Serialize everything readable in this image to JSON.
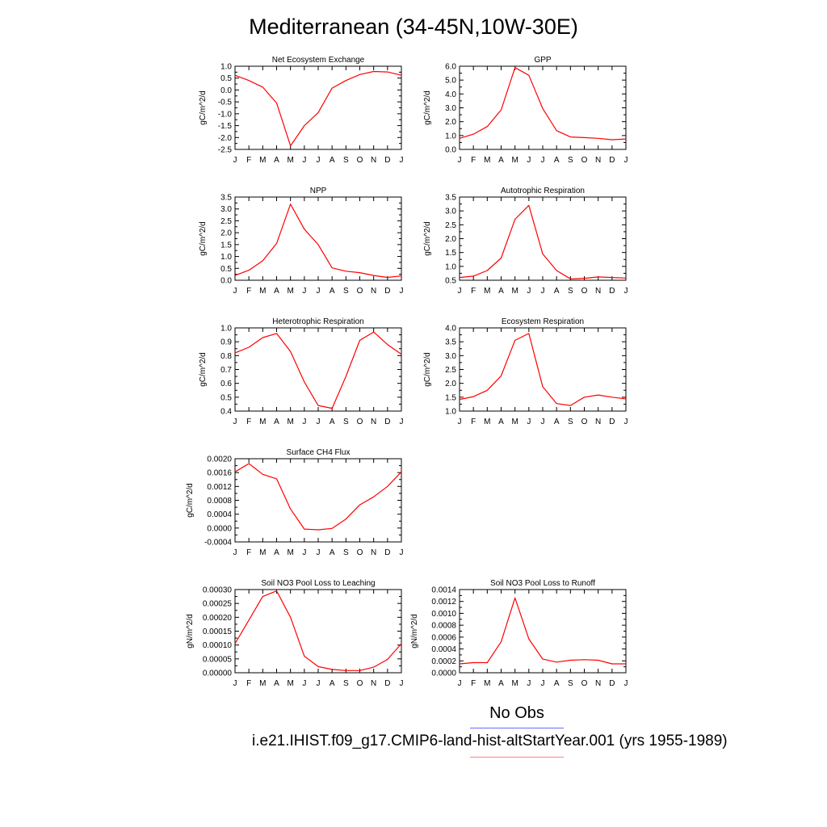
{
  "title": "Mediterranean (34-45N,10W-30E)",
  "colors": {
    "series": "#ff0000",
    "obs_line": "#6a6aff",
    "model_line": "#ff8080",
    "axis": "#000000"
  },
  "legend": {
    "obs_label": "No Obs",
    "model_label": "i.e21.IHIST.f09_g17.CMIP6-land-hist-altStartYear.001 (yrs 1955-1989)"
  },
  "chart_data": [
    {
      "type": "line",
      "title": "Net Ecosystem Exchange",
      "ylabel": "gC/m^2/d",
      "xlabel": "",
      "categories": [
        "J",
        "F",
        "M",
        "A",
        "M",
        "J",
        "J",
        "A",
        "S",
        "O",
        "N",
        "D",
        "J"
      ],
      "ylim": [
        -2.5,
        1.0
      ],
      "yticks": [
        1.0,
        0.5,
        0.0,
        -0.5,
        -1.0,
        -1.5,
        -2.0,
        -2.5
      ],
      "ytick_labels": [
        "1.0",
        "0.5",
        "0.0",
        "-0.5",
        "-1.0",
        "-1.5",
        "-2.0",
        "-2.5"
      ],
      "series": [
        {
          "values": [
            0.62,
            0.4,
            0.12,
            -0.55,
            -2.35,
            -1.5,
            -0.95,
            0.08,
            0.4,
            0.65,
            0.78,
            0.76,
            0.62
          ]
        }
      ]
    },
    {
      "type": "line",
      "title": "GPP",
      "ylabel": "gC/m^2/d",
      "xlabel": "",
      "categories": [
        "J",
        "F",
        "M",
        "A",
        "M",
        "J",
        "J",
        "A",
        "S",
        "O",
        "N",
        "D",
        "J"
      ],
      "ylim": [
        0.0,
        6.0
      ],
      "yticks": [
        6.0,
        5.0,
        4.0,
        3.0,
        2.0,
        1.0,
        0.0
      ],
      "ytick_labels": [
        "6.0",
        "5.0",
        "4.0",
        "3.0",
        "2.0",
        "1.0",
        "0.0"
      ],
      "series": [
        {
          "values": [
            0.8,
            1.1,
            1.65,
            2.85,
            5.9,
            5.35,
            2.95,
            1.35,
            0.9,
            0.85,
            0.8,
            0.7,
            0.75
          ]
        }
      ]
    },
    {
      "type": "line",
      "title": "NPP",
      "ylabel": "gC/m^2/d",
      "xlabel": "",
      "categories": [
        "J",
        "F",
        "M",
        "A",
        "M",
        "J",
        "J",
        "A",
        "S",
        "O",
        "N",
        "D",
        "J"
      ],
      "ylim": [
        0.0,
        3.5
      ],
      "yticks": [
        3.5,
        3.0,
        2.5,
        2.0,
        1.5,
        1.0,
        0.5,
        0.0
      ],
      "ytick_labels": [
        "3.5",
        "3.0",
        "2.5",
        "2.0",
        "1.5",
        "1.0",
        "0.5",
        "0.0"
      ],
      "series": [
        {
          "values": [
            0.2,
            0.42,
            0.82,
            1.55,
            3.2,
            2.15,
            1.5,
            0.52,
            0.38,
            0.32,
            0.2,
            0.12,
            0.18
          ]
        }
      ]
    },
    {
      "type": "line",
      "title": "Autotrophic Respiration",
      "ylabel": "gC/m^2/d",
      "xlabel": "",
      "categories": [
        "J",
        "F",
        "M",
        "A",
        "M",
        "J",
        "J",
        "A",
        "S",
        "O",
        "N",
        "D",
        "J"
      ],
      "ylim": [
        0.5,
        3.5
      ],
      "yticks": [
        3.5,
        3.0,
        2.5,
        2.0,
        1.5,
        1.0,
        0.5
      ],
      "ytick_labels": [
        "3.5",
        "3.0",
        "2.5",
        "2.0",
        "1.5",
        "1.0",
        "0.5"
      ],
      "series": [
        {
          "values": [
            0.6,
            0.65,
            0.85,
            1.3,
            2.7,
            3.2,
            1.45,
            0.85,
            0.55,
            0.57,
            0.62,
            0.6,
            0.58
          ]
        }
      ]
    },
    {
      "type": "line",
      "title": "Heterotrophic Respiration",
      "ylabel": "gC/m^2/d",
      "xlabel": "",
      "categories": [
        "J",
        "F",
        "M",
        "A",
        "M",
        "J",
        "J",
        "A",
        "S",
        "O",
        "N",
        "D",
        "J"
      ],
      "ylim": [
        0.4,
        1.0
      ],
      "yticks": [
        1.0,
        0.9,
        0.8,
        0.7,
        0.6,
        0.5,
        0.4
      ],
      "ytick_labels": [
        "1.0",
        "0.9",
        "0.8",
        "0.7",
        "0.6",
        "0.5",
        "0.4"
      ],
      "series": [
        {
          "values": [
            0.82,
            0.86,
            0.93,
            0.96,
            0.83,
            0.61,
            0.44,
            0.42,
            0.65,
            0.91,
            0.97,
            0.88,
            0.81
          ]
        }
      ]
    },
    {
      "type": "line",
      "title": "Ecosystem Respiration",
      "ylabel": "gC/m^2/d",
      "xlabel": "",
      "categories": [
        "J",
        "F",
        "M",
        "A",
        "M",
        "J",
        "J",
        "A",
        "S",
        "O",
        "N",
        "D",
        "J"
      ],
      "ylim": [
        1.0,
        4.0
      ],
      "yticks": [
        4.0,
        3.5,
        3.0,
        2.5,
        2.0,
        1.5,
        1.0
      ],
      "ytick_labels": [
        "4.0",
        "3.5",
        "3.0",
        "2.5",
        "2.0",
        "1.5",
        "1.0"
      ],
      "series": [
        {
          "values": [
            1.42,
            1.52,
            1.75,
            2.27,
            3.55,
            3.8,
            1.88,
            1.27,
            1.2,
            1.5,
            1.58,
            1.5,
            1.44
          ]
        }
      ]
    },
    {
      "type": "line",
      "title": "Surface CH4 Flux",
      "ylabel": "gC/m^2/d",
      "xlabel": "",
      "categories": [
        "J",
        "F",
        "M",
        "A",
        "M",
        "J",
        "J",
        "A",
        "S",
        "O",
        "N",
        "D",
        "J"
      ],
      "ylim": [
        -0.0004,
        0.002
      ],
      "yticks": [
        0.002,
        0.0016,
        0.0012,
        0.0008,
        0.0004,
        0.0,
        -0.0004
      ],
      "ytick_labels": [
        "0.0020",
        "0.0016",
        "0.0012",
        "0.0008",
        "0.0004",
        "0.0000",
        "-0.0004"
      ],
      "series": [
        {
          "values": [
            0.00162,
            0.00186,
            0.00155,
            0.00142,
            0.00055,
            -3e-05,
            -5e-05,
            -1e-05,
            0.00026,
            0.00067,
            0.0009,
            0.0012,
            0.00162
          ]
        }
      ]
    },
    {
      "type": "line",
      "title": "Soil NO3 Pool Loss to Leaching",
      "ylabel": "gN/m^2/d",
      "xlabel": "",
      "categories": [
        "J",
        "F",
        "M",
        "A",
        "M",
        "J",
        "J",
        "A",
        "S",
        "O",
        "N",
        "D",
        "J"
      ],
      "ylim": [
        0.0,
        0.0003
      ],
      "yticks": [
        0.0003,
        0.00025,
        0.0002,
        0.00015,
        0.0001,
        5e-05,
        0.0
      ],
      "ytick_labels": [
        "0.00030",
        "0.00025",
        "0.00020",
        "0.00015",
        "0.00010",
        "0.00005",
        "0.00000"
      ],
      "series": [
        {
          "values": [
            0.000105,
            0.00019,
            0.000275,
            0.000295,
            0.0002,
            6e-05,
            2.2e-05,
            1.2e-05,
            8e-06,
            8e-06,
            2e-05,
            4.8e-05,
            0.000105
          ]
        }
      ]
    },
    {
      "type": "line",
      "title": "Soil NO3 Pool Loss to Runoff",
      "ylabel": "gN/m^2/d",
      "xlabel": "",
      "categories": [
        "J",
        "F",
        "M",
        "A",
        "M",
        "J",
        "J",
        "A",
        "S",
        "O",
        "N",
        "D",
        "J"
      ],
      "ylim": [
        0.0,
        0.0014
      ],
      "yticks": [
        0.0014,
        0.0012,
        0.001,
        0.0008,
        0.0006,
        0.0004,
        0.0002,
        0.0
      ],
      "ytick_labels": [
        "0.0014",
        "0.0012",
        "0.0010",
        "0.0008",
        "0.0006",
        "0.0004",
        "0.0002",
        "0.0000"
      ],
      "series": [
        {
          "values": [
            0.00015,
            0.00017,
            0.00017,
            0.00052,
            0.00126,
            0.00057,
            0.00023,
            0.00018,
            0.00021,
            0.00022,
            0.00021,
            0.00015,
            0.00015
          ]
        }
      ]
    }
  ]
}
